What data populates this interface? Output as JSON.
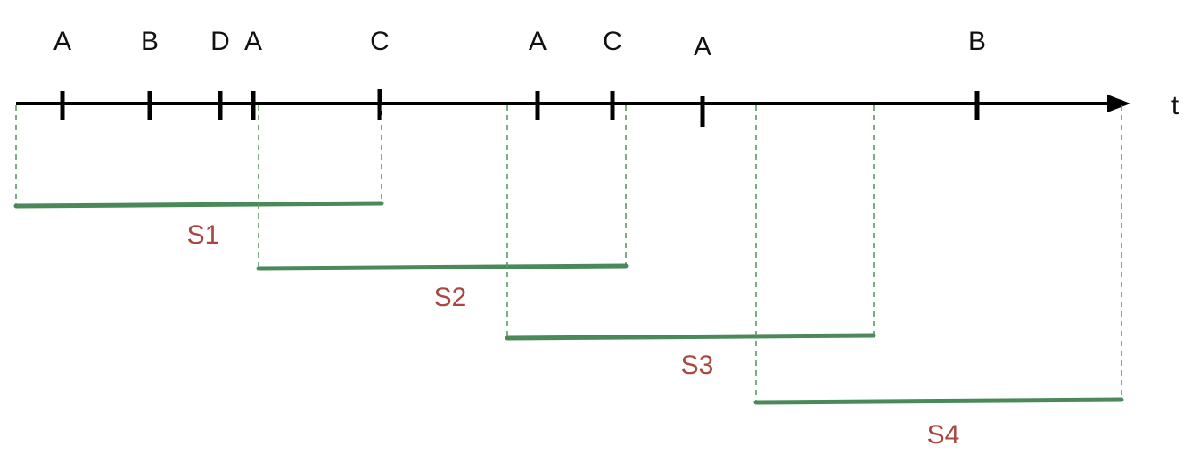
{
  "axis": {
    "label": "t"
  },
  "events": [
    {
      "label": "A"
    },
    {
      "label": "B"
    },
    {
      "label": "D"
    },
    {
      "label": "A"
    },
    {
      "label": "C"
    },
    {
      "label": "A"
    },
    {
      "label": "C"
    },
    {
      "label": "A"
    },
    {
      "label": "B"
    }
  ],
  "windows": [
    {
      "label": "S1"
    },
    {
      "label": "S2"
    },
    {
      "label": "S3"
    },
    {
      "label": "S4"
    }
  ],
  "colors": {
    "axis": "#000000",
    "window_line": "#4a8a5a",
    "window_dash": "#5a9a66",
    "window_label": "#a8473f"
  }
}
